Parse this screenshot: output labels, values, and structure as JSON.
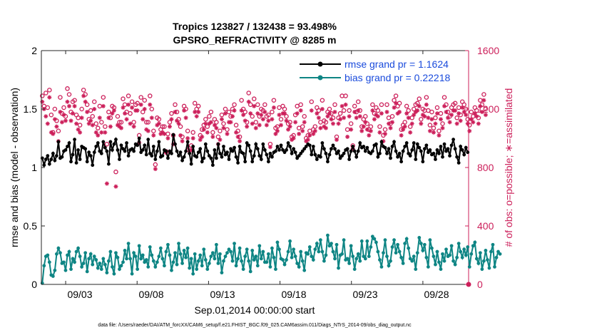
{
  "chart_data": {
    "type": "line",
    "title_line1": "Tropics 123827 / 132438 = 93.498%",
    "title_line2": "GPSRO_REFRACTIVITY @ 8285 m",
    "xlabel": "Sep.01,2014 00:00:00 start",
    "ylabel_left": "rmse and bias (model - observation)",
    "ylabel_right": "# of obs: o=possible; ∗=assimilated",
    "x_ticks": [
      "09/03",
      "09/08",
      "09/13",
      "09/18",
      "09/23",
      "09/28"
    ],
    "x_tick_days": [
      3,
      8,
      13,
      18,
      23,
      28
    ],
    "xlim": [
      1.3,
      31.2
    ],
    "y_left_ticks": [
      "0",
      "0.5",
      "1",
      "1.5",
      "2"
    ],
    "ylim_left": [
      0,
      2
    ],
    "y_right_ticks": [
      "0",
      "400",
      "800",
      "1200",
      "1600"
    ],
    "ylim_right": [
      0,
      1600
    ],
    "footnote": "data file: /Users/raeder/DAI/ATM_forcXX/CAM6_setup/f.e21.FHIST_BGC.f09_025.CAM6assim.011/Diags_NTrS_2014-09/obs_diag_output.nc",
    "colors": {
      "rmse": "#000000",
      "bias": "#0e8584",
      "obs": "#cc1f5a",
      "legend_text": "#1a4bdc"
    },
    "series": [
      {
        "name": "rmse grand pr = 1.1624",
        "kind": "line",
        "axis": "left",
        "values": [
          1.08,
          1.02,
          1.07,
          1.1,
          1.03,
          1.07,
          1.12,
          1.06,
          1.1,
          1.22,
          1.08,
          1.09,
          1.14,
          1.15,
          1.18,
          1.21,
          1.05,
          1.11,
          1.24,
          1.04,
          1.15,
          1.07,
          1.18,
          1.17,
          1.16,
          1.05,
          1.13,
          1.1,
          1.02,
          1.13,
          1.18,
          1.21,
          1.14,
          1.12,
          1.22,
          1.17,
          1.14,
          1.03,
          1.22,
          1.15,
          1.2,
          1.24,
          1.15,
          1.07,
          1.19,
          1.16,
          1.14,
          1.21,
          1.1,
          1.15,
          1.16,
          1.14,
          1.2,
          1.19,
          1.25,
          1.13,
          1.15,
          1.19,
          1.11,
          1.24,
          1.12,
          1.1,
          1.18,
          1.07,
          1.14,
          1.22,
          1.09,
          1.1,
          1.15,
          1.14,
          1.08,
          1.14,
          1.12,
          1.28,
          1.2,
          1.14,
          1.1,
          1.13,
          1.06,
          1.09,
          1.14,
          1.22,
          1.12,
          1.03,
          1.18,
          1.1,
          1.09,
          1.13,
          1.16,
          1.05,
          1.08,
          1.2,
          1.14,
          1.1,
          1.08,
          1.02,
          1.15,
          1.08,
          1.2,
          1.12,
          1.09,
          1.18,
          1.11,
          1.13,
          1.07,
          1.16,
          1.14,
          1.17,
          1.09,
          1.04,
          1.18,
          1.13,
          1.12,
          1.05,
          1.21,
          1.19,
          1.14,
          1.05,
          1.1,
          1.2,
          1.16,
          1.1,
          1.07,
          1.2,
          1.15,
          1.11,
          1.05,
          1.12,
          1.09,
          1.13,
          1.14,
          1.18,
          1.15,
          1.19,
          1.15,
          1.13,
          1.15,
          1.21,
          1.18,
          1.12,
          1.16,
          1.13,
          1.08,
          1.1,
          1.12,
          1.14,
          1.16,
          1.18,
          1.2,
          1.19,
          1.11,
          1.18,
          1.11,
          1.07,
          1.1,
          1.09,
          1.21,
          1.16,
          1.12,
          1.05,
          1.11,
          1.16,
          1.19,
          1.16,
          1.12,
          1.14,
          1.08,
          1.1,
          1.12,
          1.15,
          1.16,
          1.07,
          1.14,
          1.18,
          1.14,
          1.09,
          1.14,
          1.21,
          1.17,
          1.18,
          1.14,
          1.17,
          1.13,
          1.12,
          1.14,
          1.19,
          1.2,
          1.09,
          1.12,
          1.22,
          1.18,
          1.17,
          1.12,
          1.16,
          1.08,
          1.18,
          1.22,
          1.14,
          1.09,
          1.12,
          1.05,
          1.14,
          1.18,
          1.21,
          1.12,
          1.1,
          1.15,
          1.21,
          1.07,
          1.2,
          1.17,
          1.14,
          1.05,
          1.16,
          1.19,
          1.13,
          1.15,
          1.11,
          1.12,
          1.07,
          1.15,
          1.12,
          1.18,
          1.09,
          1.2,
          1.14,
          1.16,
          1.1,
          1.19,
          1.24,
          1.16,
          1.09,
          1.04,
          1.18,
          1.15,
          1.11,
          1.17,
          1.13
        ]
      },
      {
        "name": "bias grand pr = 0.22218",
        "kind": "line",
        "axis": "left",
        "values": [
          0.01,
          0.16,
          0.24,
          0.25,
          0.19,
          0.08,
          0.07,
          0.12,
          0.26,
          0.31,
          0.27,
          0.18,
          0.19,
          0.12,
          0.25,
          0.28,
          0.13,
          0.22,
          0.19,
          0.28,
          0.31,
          0.24,
          0.15,
          0.18,
          0.27,
          0.11,
          0.22,
          0.26,
          0.17,
          0.24,
          0.21,
          0.14,
          0.18,
          0.13,
          0.22,
          0.17,
          0.1,
          0.2,
          0.28,
          0.15,
          0.09,
          0.27,
          0.23,
          0.13,
          0.16,
          0.19,
          0.29,
          0.22,
          0.35,
          0.22,
          0.09,
          0.27,
          0.24,
          0.13,
          0.33,
          0.22,
          0.25,
          0.19,
          0.21,
          0.15,
          0.32,
          0.25,
          0.2,
          0.15,
          0.19,
          0.24,
          0.31,
          0.22,
          0.16,
          0.28,
          0.34,
          0.25,
          0.12,
          0.19,
          0.27,
          0.17,
          0.35,
          0.26,
          0.18,
          0.29,
          0.23,
          0.31,
          0.14,
          0.22,
          0.09,
          0.26,
          0.13,
          0.2,
          0.25,
          0.16,
          0.3,
          0.21,
          0.13,
          0.18,
          0.24,
          0.27,
          0.22,
          0.34,
          0.18,
          0.26,
          0.1,
          0.2,
          0.24,
          0.27,
          0.3,
          0.28,
          0.2,
          0.35,
          0.16,
          0.22,
          0.31,
          0.2,
          0.13,
          0.24,
          0.3,
          0.2,
          0.11,
          0.29,
          0.21,
          0.24,
          0.16,
          0.33,
          0.22,
          0.28,
          0.19,
          0.19,
          0.26,
          0.15,
          0.31,
          0.23,
          0.13,
          0.36,
          0.3,
          0.22,
          0.21,
          0.17,
          0.21,
          0.28,
          0.37,
          0.23,
          0.3,
          0.24,
          0.18,
          0.15,
          0.28,
          0.2,
          0.12,
          0.27,
          0.26,
          0.32,
          0.24,
          0.21,
          0.3,
          0.35,
          0.28,
          0.38,
          0.28,
          0.2,
          0.25,
          0.42,
          0.33,
          0.35,
          0.28,
          0.22,
          0.34,
          0.14,
          0.25,
          0.26,
          0.38,
          0.21,
          0.22,
          0.18,
          0.33,
          0.24,
          0.13,
          0.22,
          0.26,
          0.2,
          0.37,
          0.24,
          0.22,
          0.37,
          0.24,
          0.32,
          0.41,
          0.39,
          0.36,
          0.28,
          0.21,
          0.15,
          0.27,
          0.38,
          0.24,
          0.16,
          0.2,
          0.32,
          0.38,
          0.27,
          0.34,
          0.28,
          0.23,
          0.18,
          0.35,
          0.39,
          0.31,
          0.22,
          0.2,
          0.24,
          0.13,
          0.27,
          0.4,
          0.35,
          0.29,
          0.34,
          0.23,
          0.15,
          0.38,
          0.31,
          0.24,
          0.17,
          0.28,
          0.19,
          0.13,
          0.26,
          0.2,
          0.3,
          0.24,
          0.25,
          0.33,
          0.2,
          0.17,
          0.23,
          0.35,
          0.28,
          0.23,
          0.3,
          0.25,
          0.32,
          0.15,
          0.26,
          0.33,
          0.36,
          0.22,
          0.18,
          0.27,
          0.13,
          0.2,
          0.29,
          0.21,
          0.14,
          0.28,
          0.34,
          0.15,
          0.23,
          0.28,
          0.26
        ]
      },
      {
        "name": "obs possible",
        "kind": "marker-o",
        "axis": "right",
        "values": [
          1290,
          1220,
          1310,
          1210,
          1330,
          1160,
          1040,
          1200,
          1120,
          1050,
          1280,
          1170,
          1210,
          1150,
          1340,
          1300,
          1180,
          1250,
          1260,
          1160,
          1140,
          1090,
          1200,
          1330,
          1300,
          1230,
          1130,
          1190,
          1150,
          1250,
          1100,
          1070,
          1220,
          1110,
          1280,
          1080,
          960,
          1180,
          1140,
          1220,
          1210,
          770,
          1150,
          1110,
          1110,
          1270,
          1230,
          1180,
          1290,
          1170,
          1250,
          1110,
          1230,
          1240,
          1020,
          1280,
          1180,
          1260,
          1110,
          1110,
          1290,
          1200,
          1050,
          820,
          1140,
          1130,
          1060,
          1080,
          1080,
          910,
          1030,
          1110,
          1170,
          1020,
          1230,
          1180,
          1130,
          1080,
          1010,
          1220,
          1200,
          1050,
          930,
          950,
          1040,
          1240,
          1200,
          1220,
          1020,
          1060,
          1090,
          1130,
          1080,
          1150,
          1180,
          1040,
          1130,
          1110,
          1010,
          1050,
          1160,
          1100,
          1200,
          1060,
          1180,
          1150,
          1200,
          1230,
          1090,
          1050,
          1010,
          1260,
          1200,
          1180,
          1110,
          1310,
          1230,
          1150,
          1270,
          1110,
          1230,
          1150,
          1200,
          1190,
          1230,
          1150,
          1160,
          960,
          1180,
          1260,
          1070,
          1080,
          1210,
          1130,
          1220,
          1200,
          1150,
          1100,
          1110,
          1010,
          1020,
          1160,
          1220,
          1070,
          1230,
          1080,
          1150,
          1000,
          1020,
          1050,
          1250,
          1060,
          1080,
          1210,
          1190,
          1110,
          1260,
          1120,
          1110,
          1180,
          1200,
          1170,
          1140,
          1230,
          1010,
          1140,
          1170,
          1290,
          1190,
          1290,
          1060,
          1190,
          1100,
          950,
          1220,
          1180,
          1250,
          1190,
          1080,
          1130,
          1150,
          1100,
          1060,
          1080,
          1230,
          1170,
          1210,
          1190,
          1080,
          1230,
          1020,
          1060,
          1230,
          1140,
          1100,
          1150,
          1260,
          1290,
          1220,
          1240,
          1060,
          1090,
          1110,
          1220,
          1190,
          1080,
          1140,
          1200,
          1230,
          1240,
          1270,
          1130,
          1200,
          1190,
          1280,
          1190,
          1090,
          1180,
          1070,
          1140,
          1210,
          1050,
          1170,
          1100,
          1280,
          1230,
          1180,
          1150,
          1210,
          1230,
          1240,
          1140,
          1210,
          1160,
          1250,
          1230,
          1200,
          1130,
          1090,
          1180,
          1150,
          1210,
          1190,
          1140,
          1260,
          1230,
          1300,
          1200
        ]
      },
      {
        "name": "obs assimilated",
        "kind": "marker-star",
        "axis": "right",
        "values": [
          1250,
          1200,
          1150,
          1100,
          1280,
          1040,
          1030,
          1130,
          1080,
          980,
          1180,
          1110,
          1160,
          1120,
          1250,
          1220,
          1120,
          1170,
          1220,
          1100,
          1060,
          1040,
          1140,
          1290,
          1250,
          1180,
          1100,
          1120,
          1090,
          1200,
          1040,
          1020,
          1140,
          1040,
          1220,
          1040,
          690,
          1140,
          1080,
          1170,
          1190,
          670,
          1090,
          1080,
          1070,
          1210,
          1170,
          1130,
          1230,
          1100,
          1210,
          1080,
          1190,
          1190,
          970,
          1230,
          1130,
          1200,
          1060,
          1050,
          1230,
          1140,
          1020,
          790,
          1090,
          1100,
          1030,
          1040,
          1030,
          900,
          1000,
          1080,
          1130,
          960,
          1180,
          1120,
          1100,
          1020,
          980,
          1190,
          1140,
          1000,
          910,
          920,
          1000,
          1180,
          1150,
          1180,
          990,
          1010,
          1060,
          1100,
          1040,
          1100,
          1110,
          1010,
          1090,
          1070,
          960,
          990,
          1130,
          1070,
          1170,
          1030,
          1110,
          1110,
          1150,
          1190,
          1040,
          1010,
          980,
          1190,
          1160,
          1120,
          1080,
          1250,
          1170,
          1100,
          1220,
          1070,
          1170,
          1090,
          1160,
          1130,
          1180,
          1090,
          1120,
          940,
          1130,
          1210,
          1030,
          1050,
          1160,
          1090,
          1170,
          1170,
          1120,
          1060,
          1080,
          990,
          1000,
          1110,
          1170,
          1030,
          1190,
          1050,
          1110,
          980,
          990,
          1020,
          1190,
          1030,
          1050,
          1170,
          1140,
          1070,
          1200,
          1080,
          1070,
          1150,
          1170,
          1130,
          1100,
          1180,
          990,
          1100,
          1130,
          1220,
          1140,
          1230,
          1010,
          1150,
          1060,
          930,
          1180,
          1140,
          1190,
          1150,
          1050,
          1080,
          1110,
          1060,
          1020,
          1050,
          1190,
          1130,
          1160,
          1150,
          1040,
          1170,
          980,
          1030,
          1180,
          1100,
          1070,
          1110,
          1210,
          1240,
          1170,
          1180,
          1020,
          1060,
          1080,
          1170,
          1140,
          1040,
          1100,
          1160,
          1180,
          1190,
          1220,
          1100,
          1160,
          1150,
          1230,
          1140,
          1050,
          1130,
          1040,
          1100,
          1170,
          1020,
          1130,
          1070,
          1220,
          1180,
          1140,
          1110,
          1160,
          1190,
          1190,
          1100,
          1170,
          1120,
          1210,
          1180,
          1160,
          1100,
          1050,
          1130,
          1110,
          1170,
          1150,
          1100,
          1220,
          1180,
          1260,
          1160
        ]
      }
    ]
  }
}
